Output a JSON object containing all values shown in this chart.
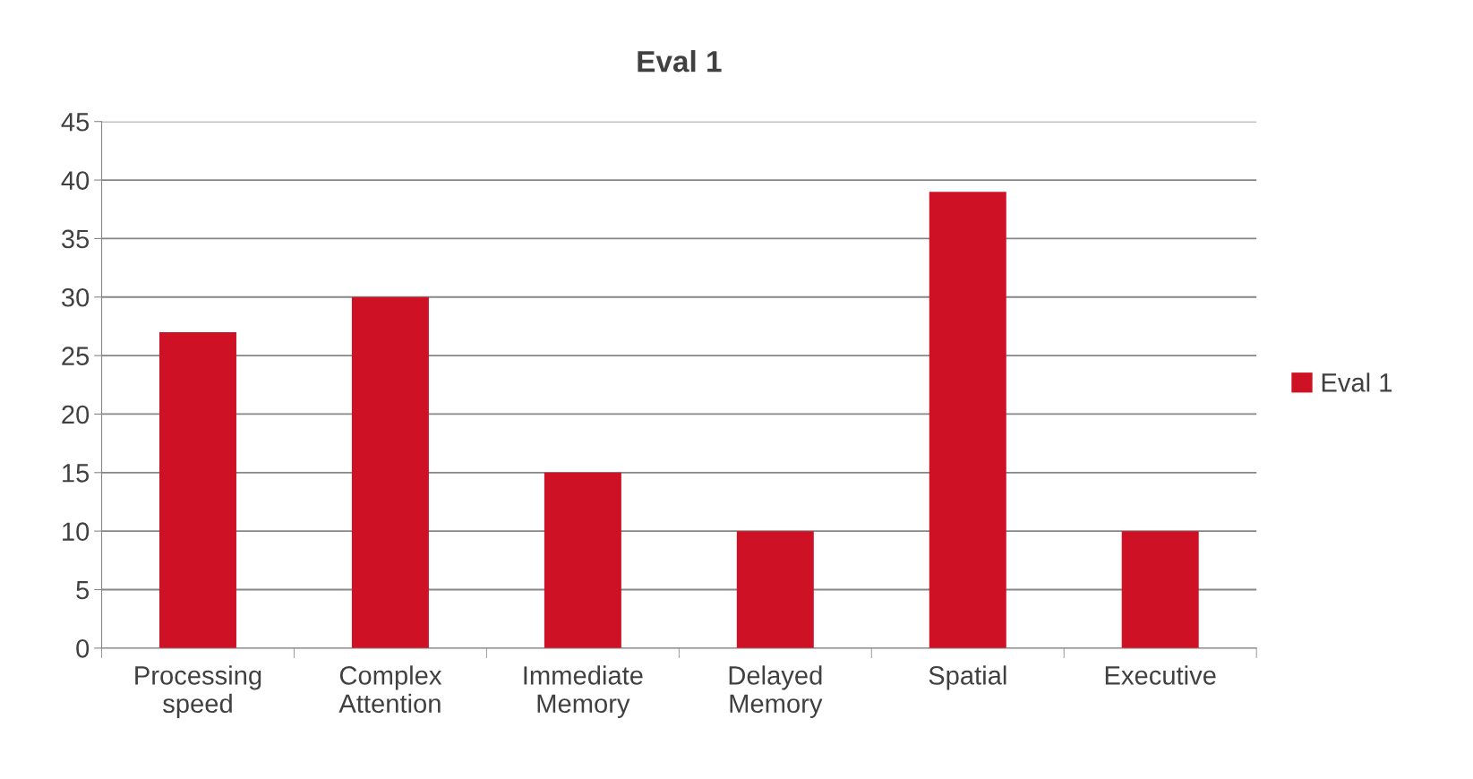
{
  "chart_data": {
    "type": "bar",
    "title": "Eval 1",
    "categories": [
      "Processing\nspeed",
      "Complex\nAttention",
      "Immediate\nMemory",
      "Delayed\nMemory",
      "Spatial",
      "Executive"
    ],
    "series": [
      {
        "name": "Eval 1",
        "color": "#cf1126",
        "values": [
          27,
          30,
          15,
          10,
          39,
          10
        ]
      }
    ],
    "ylim": [
      0,
      45
    ],
    "yticks": [
      0,
      5,
      10,
      15,
      20,
      25,
      30,
      35,
      40,
      45
    ],
    "grid": "y",
    "legend": "right"
  }
}
